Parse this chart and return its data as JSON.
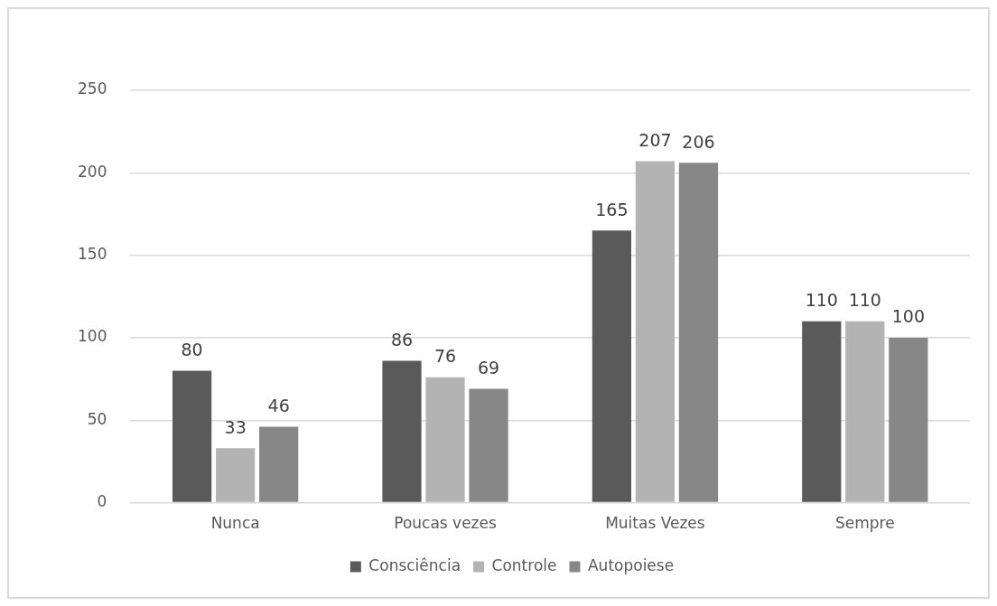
{
  "chart_data": {
    "type": "bar",
    "categories": [
      "Nunca",
      "Poucas vezes",
      "Muitas Vezes",
      "Sempre"
    ],
    "series": [
      {
        "name": "Consciência",
        "color": "#5a5a5a",
        "values": [
          80,
          86,
          165,
          110
        ]
      },
      {
        "name": "Controle",
        "color": "#b3b3b3",
        "values": [
          33,
          76,
          207,
          110
        ]
      },
      {
        "name": "Autopoiese",
        "color": "#878787",
        "values": [
          46,
          69,
          206,
          100
        ]
      }
    ],
    "ylim": [
      0,
      250
    ],
    "yticks": [
      0,
      50,
      100,
      150,
      200,
      250
    ],
    "grid": "y",
    "legend": "bottom",
    "data_labels": true
  }
}
